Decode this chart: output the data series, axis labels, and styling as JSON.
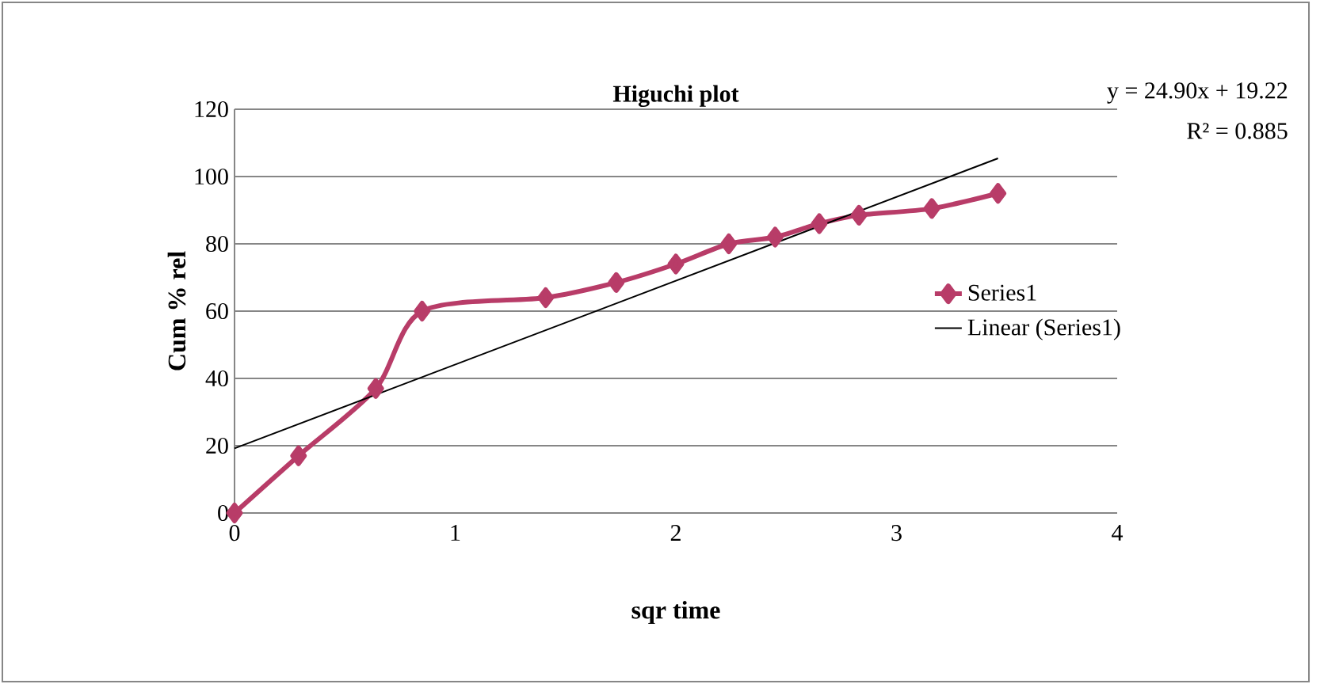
{
  "chart_data": {
    "type": "line",
    "title": "Higuchi plot",
    "xlabel": "sqr time",
    "ylabel": "Cum % rel",
    "annotations": [
      "y = 24.90x + 19.22",
      "R² = 0.885"
    ],
    "series": [
      {
        "name": "Series1",
        "color": "#b83c68",
        "marker": "diamond",
        "x": [
          0,
          0.29,
          0.64,
          0.85,
          1.41,
          1.73,
          2.0,
          2.24,
          2.45,
          2.65,
          2.83,
          3.16,
          3.46
        ],
        "values": [
          0,
          17,
          37,
          60,
          64,
          68.5,
          74,
          80,
          82,
          86,
          88.5,
          90.5,
          95
        ]
      },
      {
        "name": "Linear (Series1)",
        "color": "#000000",
        "marker": "none",
        "x": [
          0,
          3.46
        ],
        "values": [
          19.2,
          105.4
        ]
      }
    ],
    "xlim": [
      0,
      4
    ],
    "ylim": [
      0,
      120
    ],
    "xticks": [
      0,
      1,
      2,
      3,
      4
    ],
    "yticks": [
      0,
      20,
      40,
      60,
      80,
      100,
      120
    ],
    "grid": "y",
    "legend": "right"
  }
}
